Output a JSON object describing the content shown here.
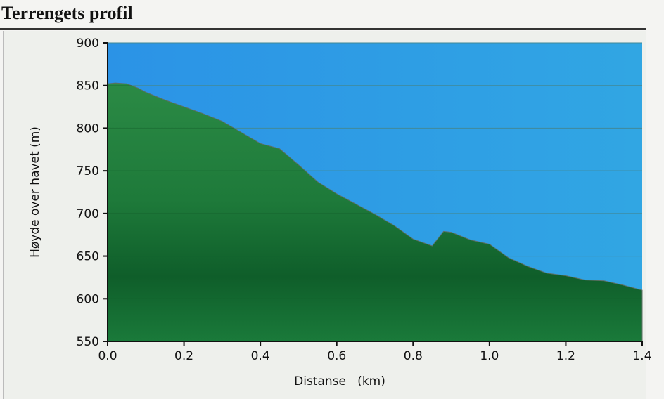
{
  "page": {
    "title": "Terrengets profil"
  },
  "chart_data": {
    "type": "area",
    "title": "",
    "xlabel": "Distanse   (km)",
    "ylabel": "Høyde over havet (m)",
    "xlim": [
      0.0,
      1.4
    ],
    "ylim": [
      550,
      900
    ],
    "x_ticks": [
      "0.0",
      "0.2",
      "0.4",
      "0.6",
      "0.8",
      "1.0",
      "1.2",
      "1.4"
    ],
    "y_ticks": [
      "550",
      "600",
      "650",
      "700",
      "750",
      "800",
      "850",
      "900"
    ],
    "grid": true,
    "colors": {
      "sky": "#2a9be0",
      "terrain": "#1a7a3a",
      "terrain_dark": "#0f5e2a",
      "axis": "#111111"
    },
    "series": [
      {
        "x": [
          0.0,
          0.02,
          0.05,
          0.08,
          0.1,
          0.15,
          0.2,
          0.25,
          0.3,
          0.35,
          0.4,
          0.45,
          0.5,
          0.55,
          0.6,
          0.65,
          0.7,
          0.75,
          0.8,
          0.85,
          0.88,
          0.9,
          0.95,
          1.0,
          1.05,
          1.1,
          1.15,
          1.2,
          1.25,
          1.3,
          1.35,
          1.4
        ],
        "y": [
          852,
          853,
          852,
          847,
          842,
          833,
          825,
          817,
          808,
          795,
          782,
          776,
          757,
          737,
          723,
          711,
          699,
          686,
          670,
          662,
          679,
          678,
          669,
          664,
          648,
          638,
          630,
          627,
          622,
          621,
          616,
          610
        ]
      }
    ]
  }
}
